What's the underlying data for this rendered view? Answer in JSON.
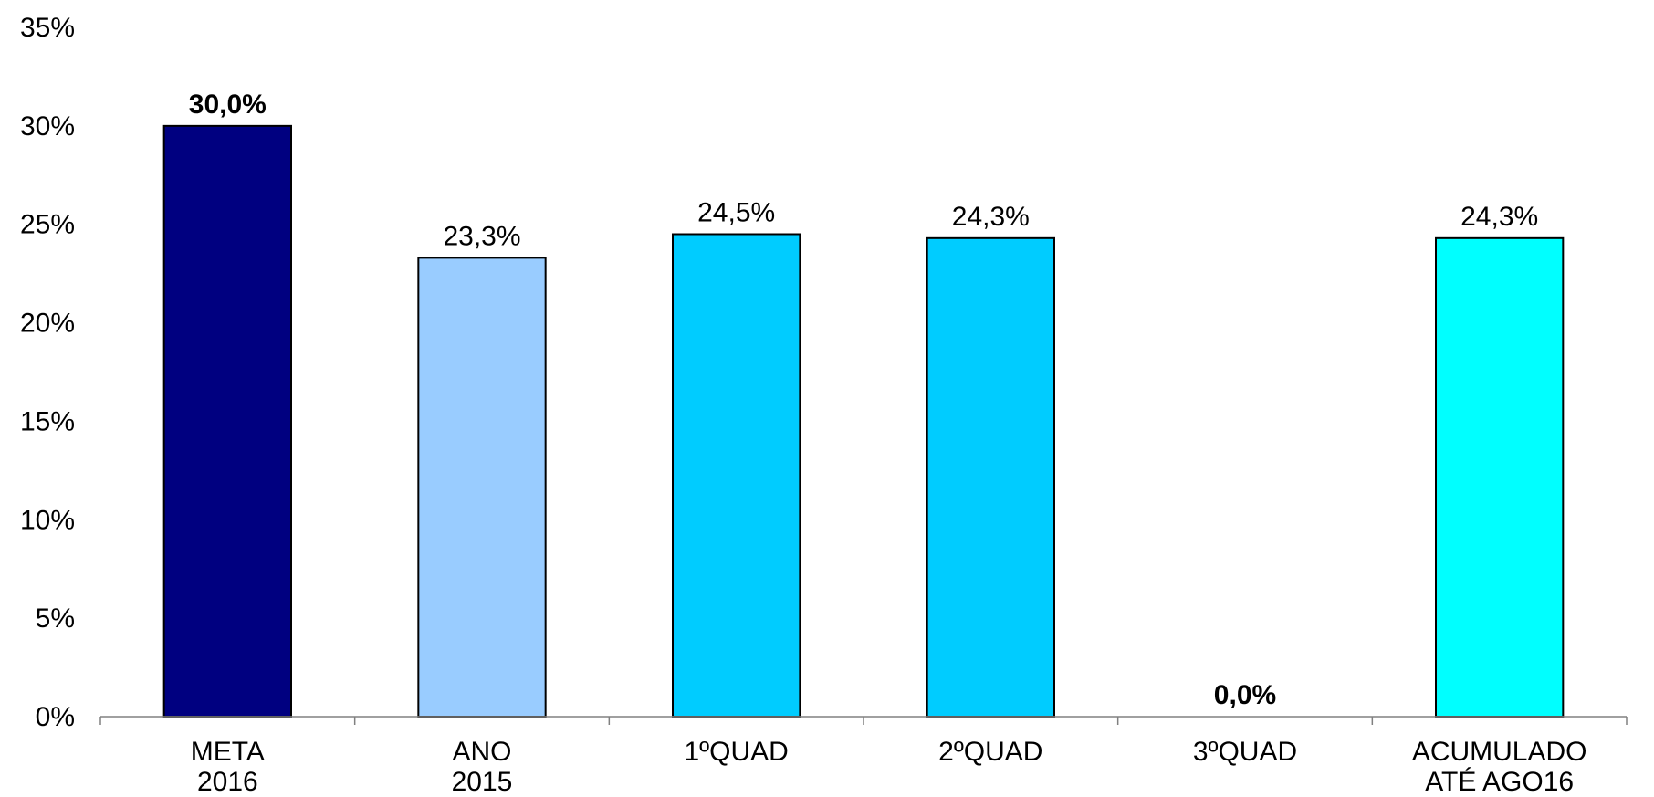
{
  "chart_data": {
    "type": "bar",
    "categories": [
      [
        "META",
        "2016"
      ],
      [
        "ANO",
        "2015"
      ],
      [
        "1ºQUAD"
      ],
      [
        "2ºQUAD"
      ],
      [
        "3ºQUAD"
      ],
      [
        "ACUMULADO",
        "ATÉ AGO16"
      ]
    ],
    "values": [
      30.0,
      23.3,
      24.5,
      24.3,
      0.0,
      24.3
    ],
    "data_labels": [
      "30,0%",
      "23,3%",
      "24,5%",
      "24,3%",
      "0,0%",
      "24,3%"
    ],
    "bold_labels": [
      true,
      false,
      false,
      false,
      true,
      false
    ],
    "colors": [
      "#000080",
      "#99CCFF",
      "#00CCFF",
      "#00CCFF",
      "#00CCFF",
      "#00FFFF"
    ],
    "ylim": [
      0,
      35
    ],
    "yticks": [
      0,
      5,
      10,
      15,
      20,
      25,
      30,
      35
    ],
    "ytick_labels": [
      "0%",
      "5%",
      "10%",
      "15%",
      "20%",
      "25%",
      "30%",
      "35%"
    ],
    "grid": false,
    "legend": "none"
  }
}
